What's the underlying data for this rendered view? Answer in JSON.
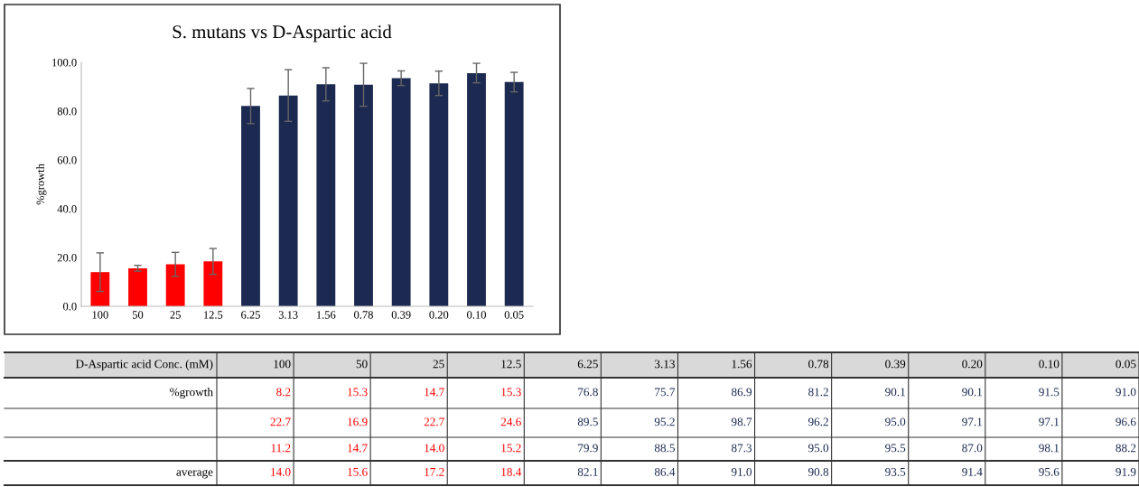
{
  "chart_data": {
    "type": "bar",
    "title": "S. mutans vs D-Aspartic acid",
    "xlabel": "D-Aspartic acid Conc. (mM)",
    "ylabel": "%growth",
    "categories": [
      "100",
      "50",
      "25",
      "12.5",
      "6.25",
      "3.13",
      "1.56",
      "0.78",
      "0.39",
      "0.20",
      "0.10",
      "0.05"
    ],
    "values": [
      14.0,
      15.6,
      17.2,
      18.4,
      82.1,
      86.4,
      91.0,
      90.8,
      93.5,
      91.4,
      95.6,
      91.9
    ],
    "errors": [
      7.9,
      1.2,
      4.9,
      5.3,
      7.2,
      10.6,
      6.8,
      8.8,
      3.0,
      5.0,
      4.0,
      4.0
    ],
    "colors": [
      "#ff0000",
      "#ff0000",
      "#ff0000",
      "#ff0000",
      "#1c2a52",
      "#1c2a52",
      "#1c2a52",
      "#1c2a52",
      "#1c2a52",
      "#1c2a52",
      "#1c2a52",
      "#1c2a52"
    ],
    "ylim": [
      0,
      100
    ],
    "yticks": [
      {
        "value": 0,
        "label": "0.0"
      },
      {
        "value": 20,
        "label": "20.0"
      },
      {
        "value": 40,
        "label": "40.0"
      },
      {
        "value": 60,
        "label": "60.0"
      },
      {
        "value": 80,
        "label": "80.0"
      },
      {
        "value": 100,
        "label": "100.0"
      }
    ],
    "annotations": [
      "%growth",
      "8.2",
      "15.3",
      "14.7",
      "15.3",
      "76.8",
      "75.7",
      "86.9",
      "81.2",
      "90.1",
      "90.1",
      "91.5",
      "91.0",
      "22.7",
      "16.9",
      "22.7",
      "24.6",
      "89.5",
      "95.2",
      "98.7",
      "96.2",
      "95.0",
      "97.1",
      "97.1",
      "96.6",
      "11.2",
      "14.7",
      "14.0",
      "15.2",
      "79.9",
      "88.5",
      "87.3",
      "95.0",
      "95.5",
      "87.0",
      "98.1",
      "88.2",
      "average",
      "14.0",
      "15.6",
      "17.2",
      "18.4",
      "82.1",
      "86.4",
      "91.0",
      "90.8",
      "93.5",
      "91.4",
      "95.6",
      "91.9"
    ]
  }
}
